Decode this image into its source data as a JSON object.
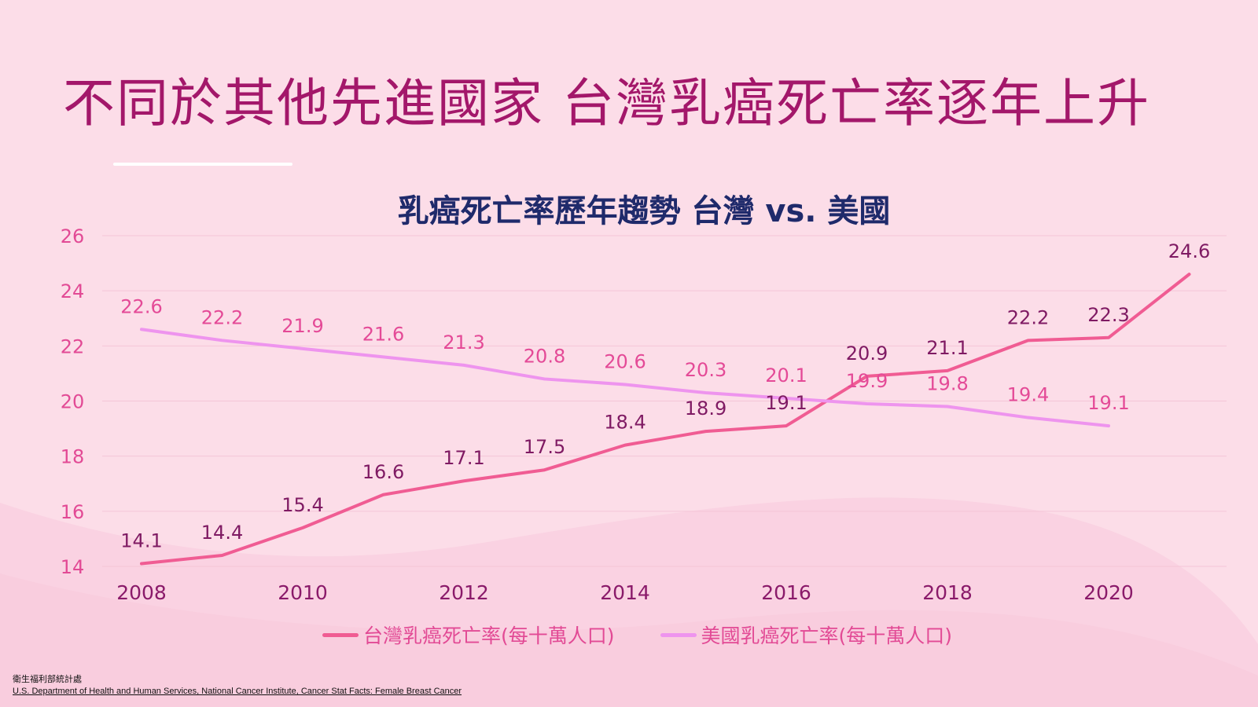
{
  "slide_title": "不同於其他先進國家  台灣乳癌死亡率逐年上升",
  "colors": {
    "background": "#fcdde8",
    "title": "#a3176a",
    "chart_title": "#1f2a6b",
    "axis_tick": "#e24a95",
    "taiwan_line": "#f05c93",
    "us_line": "#ee94ee",
    "taiwan_label": "#7f1a63",
    "us_label": "#e44a97"
  },
  "chart_data": {
    "type": "line",
    "title": "乳癌死亡率歷年趨勢 台灣 vs. 美國",
    "x": [
      2008,
      2009,
      2010,
      2011,
      2012,
      2013,
      2014,
      2015,
      2016,
      2017,
      2018,
      2019,
      2020,
      2021
    ],
    "x_tick_labels": [
      "2008",
      "2010",
      "2012",
      "2014",
      "2016",
      "2018",
      "2020"
    ],
    "y_tick_labels": [
      "14",
      "16",
      "18",
      "20",
      "22",
      "24",
      "26"
    ],
    "ylim": [
      14,
      26
    ],
    "grid": true,
    "legend_position": "bottom",
    "series": [
      {
        "name": "台灣乳癌死亡率(每十萬人口)",
        "color": "#f05c93",
        "values": [
          14.1,
          14.4,
          15.4,
          16.6,
          17.1,
          17.5,
          18.4,
          18.9,
          19.1,
          20.9,
          21.1,
          22.2,
          22.3,
          24.6
        ]
      },
      {
        "name": "美國乳癌死亡率(每十萬人口)",
        "color": "#ee94ee",
        "values": [
          22.6,
          22.2,
          21.9,
          21.6,
          21.3,
          20.8,
          20.6,
          20.3,
          20.1,
          19.9,
          19.8,
          19.4,
          19.1,
          null
        ]
      }
    ]
  },
  "source": {
    "line1": "衛生福利部統計處",
    "line2": "U.S. Department of Health and Human Services, National Cancer Institute, Cancer Stat Facts: Female Breast Cancer"
  }
}
